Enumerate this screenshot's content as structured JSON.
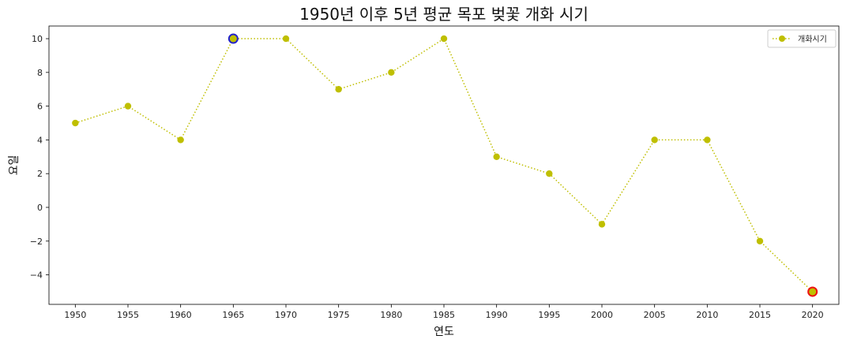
{
  "chart_data": {
    "type": "line",
    "title": "1950년 이후 5년 평균 목포 벚꽃 개화 시기",
    "xlabel": "연도",
    "ylabel": "요일",
    "x": [
      1950,
      1955,
      1960,
      1965,
      1970,
      1975,
      1980,
      1985,
      1990,
      1995,
      2000,
      2005,
      2010,
      2015,
      2020
    ],
    "x_tick_labels": [
      "1950",
      "1955",
      "1960",
      "1965",
      "1970",
      "1975",
      "1980",
      "1985",
      "1990",
      "1995",
      "2000",
      "2005",
      "2010",
      "2015",
      "2020"
    ],
    "y_tick_values": [
      10,
      8,
      6,
      4,
      2,
      0,
      -2,
      -4
    ],
    "y_tick_labels": [
      "10",
      "8",
      "6",
      "4",
      "2",
      "0",
      "−2",
      "−4"
    ],
    "xlim": [
      1947.5,
      2022.5
    ],
    "ylim": [
      -5.75,
      10.75
    ],
    "series": [
      {
        "name": "개화시기",
        "values": [
          5,
          6,
          4,
          10,
          10,
          7,
          8,
          10,
          3,
          2,
          -1,
          4,
          4,
          -2,
          -5
        ],
        "color": "#bfbf00",
        "line_style": "dotted",
        "marker": "circle"
      }
    ],
    "highlights": [
      {
        "x": 1965,
        "y": 10,
        "edge_color": "#2222cc"
      },
      {
        "x": 2020,
        "y": -5,
        "edge_color": "#ee1111"
      }
    ],
    "grid": false,
    "legend": "top-right"
  }
}
